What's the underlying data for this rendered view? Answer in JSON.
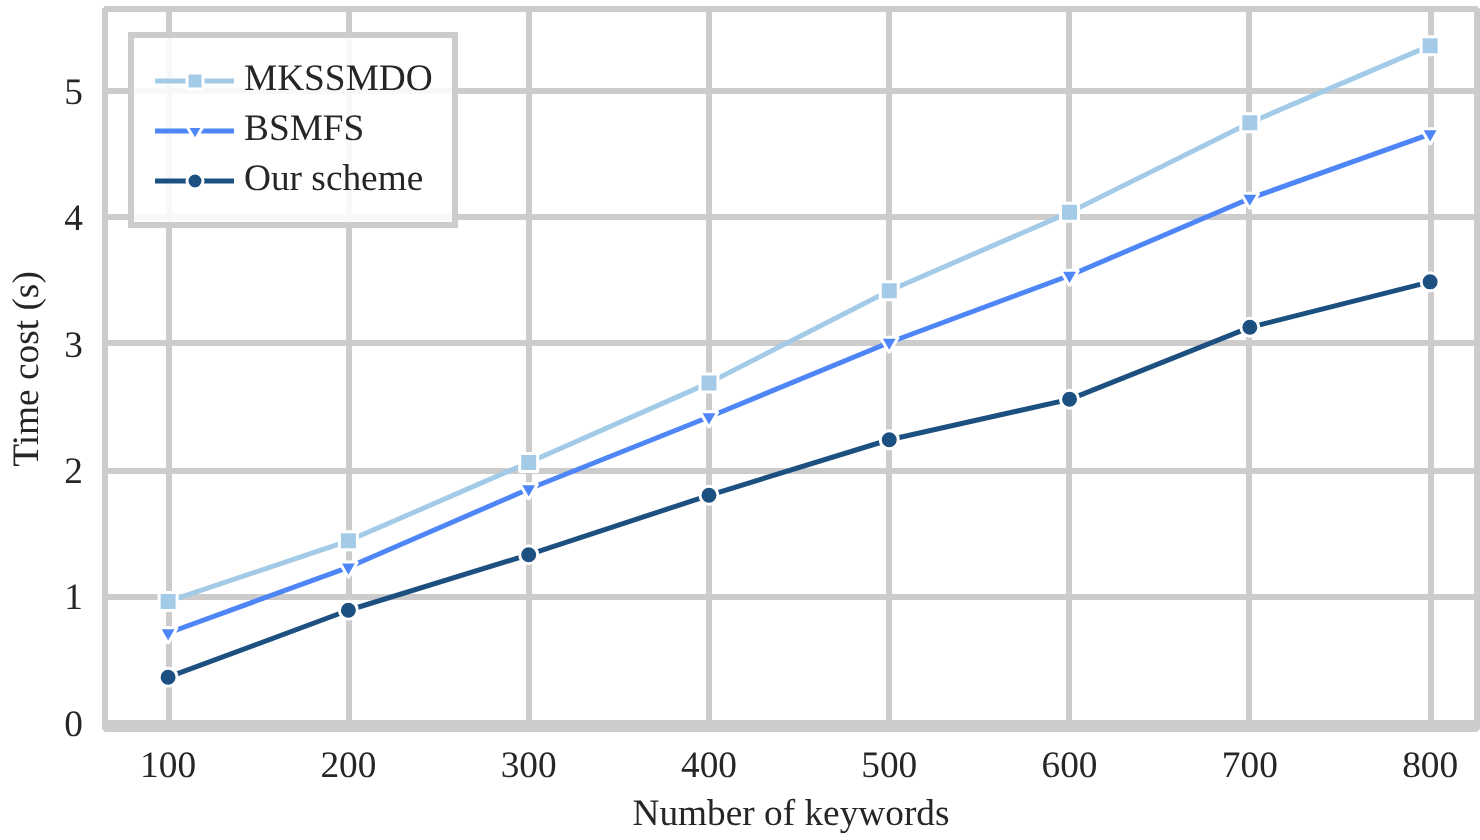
{
  "chart_data": {
    "type": "line",
    "xlabel": "Number of keywords",
    "ylabel": "Time cost (s)",
    "x": [
      100,
      200,
      300,
      400,
      500,
      600,
      700,
      800
    ],
    "series": [
      {
        "name": "MKSSMDO",
        "color": "#a3cbe8",
        "marker": "square",
        "values": [
          0.96,
          1.44,
          2.06,
          2.69,
          3.42,
          4.04,
          4.75,
          5.36
        ]
      },
      {
        "name": "BSMFS",
        "color": "#4f86f7",
        "marker": "triangle",
        "values": [
          0.71,
          1.23,
          1.85,
          2.42,
          3.01,
          3.54,
          4.15,
          4.66
        ]
      },
      {
        "name": "Our scheme",
        "color": "#1c5080",
        "marker": "circle",
        "values": [
          0.36,
          0.89,
          1.33,
          1.8,
          2.24,
          2.56,
          3.13,
          3.49
        ]
      }
    ],
    "xlim": [
      65,
      826
    ],
    "ylim": [
      -0.05,
      5.65
    ],
    "xticks": [
      100,
      200,
      300,
      400,
      500,
      600,
      700,
      800
    ],
    "yticks": [
      0,
      1,
      2,
      3,
      4,
      5
    ],
    "grid": true,
    "legend": "top left",
    "line_style": "solid"
  }
}
